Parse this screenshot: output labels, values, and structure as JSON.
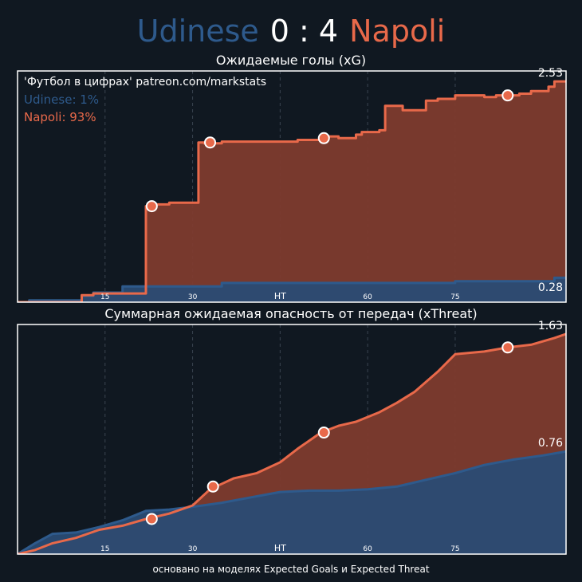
{
  "header": {
    "home_team": "Udinese",
    "score": "0 : 4",
    "away_team": "Napoli"
  },
  "colors": {
    "background": "#101821",
    "home": "#2e5a8c",
    "away": "#e8694a",
    "away_fill": "#7e3b2e",
    "home_fill": "#2a4b74",
    "grid": "#3a4450",
    "frame": "#ffffff"
  },
  "footer": "основано на моделях Expected Goals и Expected Threat",
  "chart_data": [
    {
      "type": "area",
      "title": "Ожидаемые голы (xG)",
      "source_label": "'Футбол в цифрах' patreon.com/markstats",
      "legend": [
        "Udinese: 1%",
        "Napoli: 93%"
      ],
      "legend_placement": "top-left",
      "xlim": [
        0,
        94
      ],
      "ylim": [
        0,
        2.65
      ],
      "x_ticks": [
        {
          "x": 15,
          "label": "15"
        },
        {
          "x": 30,
          "label": "30"
        },
        {
          "x": 45,
          "label": "HT"
        },
        {
          "x": 60,
          "label": "60"
        },
        {
          "x": 75,
          "label": "75"
        }
      ],
      "end_labels": {
        "away": "2.53",
        "home": "0.28"
      },
      "series": [
        {
          "name": "Udinese",
          "team": "home",
          "x": [
            0,
            2,
            2,
            11,
            11,
            13,
            13,
            18,
            18,
            35,
            35,
            75,
            75,
            92,
            92,
            94
          ],
          "y": [
            0,
            0,
            0.02,
            0.02,
            0.07,
            0.07,
            0.11,
            0.11,
            0.18,
            0.18,
            0.22,
            0.22,
            0.24,
            0.24,
            0.28,
            0.28
          ]
        },
        {
          "name": "Napoli",
          "team": "away",
          "x": [
            0,
            11,
            11,
            13,
            13,
            22,
            22,
            23,
            23,
            26,
            26,
            31,
            31,
            32,
            32,
            35,
            35,
            48,
            48,
            52,
            52,
            55,
            55,
            58,
            58,
            59,
            59,
            62,
            62,
            63,
            63,
            66,
            66,
            70,
            70,
            72,
            72,
            75,
            75,
            80,
            80,
            82,
            82,
            86,
            86,
            88,
            88,
            89,
            89,
            91,
            91,
            92,
            92,
            94
          ],
          "y": [
            0,
            0,
            0.08,
            0.08,
            0.1,
            0.1,
            1.1,
            1.1,
            1.12,
            1.12,
            1.14,
            1.14,
            1.83,
            1.83,
            1.82,
            1.82,
            1.84,
            1.84,
            1.86,
            1.86,
            1.9,
            1.9,
            1.88,
            1.88,
            1.92,
            1.92,
            1.95,
            1.95,
            1.97,
            1.97,
            2.25,
            2.25,
            2.2,
            2.2,
            2.31,
            2.31,
            2.33,
            2.33,
            2.37,
            2.37,
            2.35,
            2.35,
            2.37,
            2.37,
            2.39,
            2.39,
            2.42,
            2.42,
            2.42,
            2.42,
            2.47,
            2.47,
            2.53,
            2.53
          ]
        }
      ],
      "goals": [
        {
          "team": "away",
          "x": 23,
          "y": 1.1
        },
        {
          "team": "away",
          "x": 33,
          "y": 1.83
        },
        {
          "team": "away",
          "x": 52.5,
          "y": 1.88
        },
        {
          "team": "away",
          "x": 84,
          "y": 2.37
        }
      ]
    },
    {
      "type": "area",
      "title": "Суммарная ожидаемая опасность от передач (xThreat)",
      "xlim": [
        0,
        94
      ],
      "ylim": [
        0,
        1.7
      ],
      "x_ticks": [
        {
          "x": 15,
          "label": "15"
        },
        {
          "x": 30,
          "label": "30"
        },
        {
          "x": 45,
          "label": "HT"
        },
        {
          "x": 60,
          "label": "60"
        },
        {
          "x": 75,
          "label": "75"
        }
      ],
      "end_labels": {
        "away": "1.63",
        "home": "0.76"
      },
      "series": [
        {
          "name": "Udinese",
          "team": "home",
          "x": [
            0,
            3,
            6,
            10,
            14,
            18,
            22,
            26,
            30,
            35,
            40,
            45,
            50,
            55,
            60,
            65,
            70,
            75,
            80,
            85,
            90,
            94
          ],
          "y": [
            0,
            0.08,
            0.15,
            0.16,
            0.2,
            0.25,
            0.32,
            0.33,
            0.35,
            0.38,
            0.42,
            0.46,
            0.47,
            0.47,
            0.48,
            0.5,
            0.55,
            0.6,
            0.66,
            0.7,
            0.73,
            0.76
          ]
        },
        {
          "name": "Napoli",
          "team": "away",
          "x": [
            0,
            3,
            6,
            10,
            14,
            18,
            22,
            26,
            30,
            33,
            37,
            41,
            45,
            48,
            52,
            55,
            58,
            62,
            65,
            68,
            72,
            75,
            80,
            84,
            88,
            92,
            94
          ],
          "y": [
            0,
            0.03,
            0.08,
            0.12,
            0.18,
            0.21,
            0.26,
            0.3,
            0.36,
            0.48,
            0.56,
            0.6,
            0.68,
            0.78,
            0.9,
            0.95,
            0.98,
            1.05,
            1.12,
            1.2,
            1.35,
            1.48,
            1.5,
            1.53,
            1.55,
            1.6,
            1.63
          ]
        }
      ],
      "goals": [
        {
          "team": "away",
          "x": 23,
          "y": 0.26
        },
        {
          "team": "away",
          "x": 33.5,
          "y": 0.5
        },
        {
          "team": "away",
          "x": 52.5,
          "y": 0.9
        },
        {
          "team": "away",
          "x": 84,
          "y": 1.53
        }
      ]
    }
  ]
}
